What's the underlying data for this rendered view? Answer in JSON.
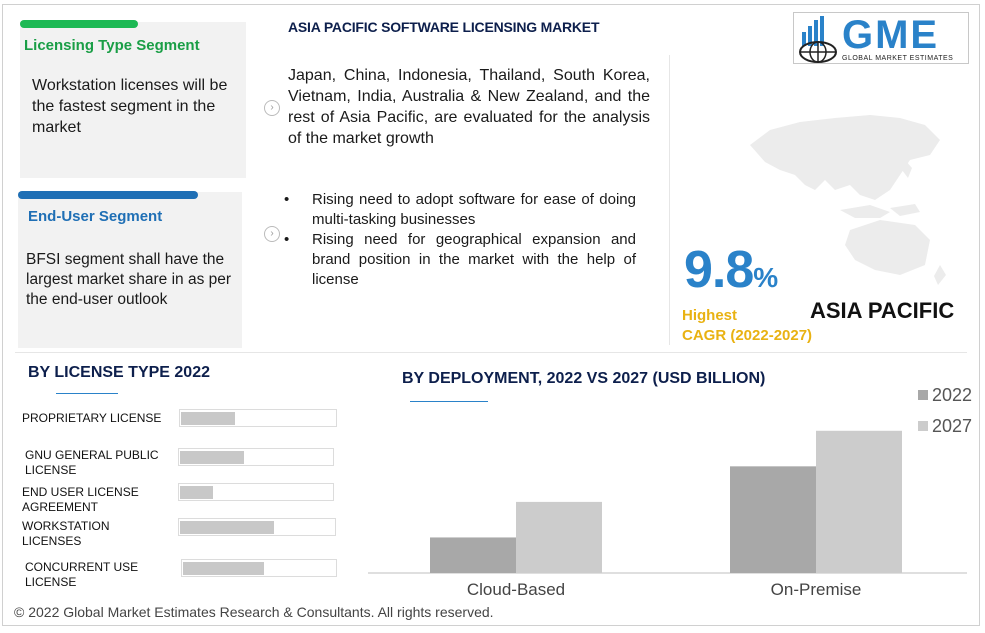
{
  "segments": {
    "licensing": {
      "title": "Licensing Type Segment",
      "text": "Workstation licenses will be the fastest segment in the market",
      "color": "#1db954"
    },
    "end_user": {
      "title": "End-User Segment",
      "text": "BFSI segment shall have the largest market share in as per the end-user outlook",
      "color": "#1f6fb5"
    }
  },
  "main": {
    "title": "ASIA PACIFIC SOFTWARE LICENSING MARKET",
    "paragraph": "Japan, China, Indonesia, Thailand, South Korea, Vietnam, India, Australia & New Zealand, and the rest of Asia Pacific, are evaluated for the analysis of the market growth",
    "bullets": [
      "Rising need to adopt software for ease of doing multi-tasking businesses",
      "Rising need for geographical expansion and brand position in the market with the help of license"
    ],
    "arrow_icon": "chevron-right-circle-icon"
  },
  "logo": {
    "text": "GME",
    "subtext": "GLOBAL MARKET ESTIMATES"
  },
  "cagr": {
    "value": "9.8",
    "unit": "%",
    "label1": "Highest",
    "label2": "CAGR (2022-2027)",
    "region": "ASIA PACIFIC"
  },
  "license_type": {
    "title": "BY LICENSE TYPE 2022",
    "items": [
      {
        "label": "PROPRIETARY LICENSE",
        "share": 0.35
      },
      {
        "label": "GNU GENERAL PUBLIC LICENSE",
        "share": 0.42
      },
      {
        "label": "END USER LICENSE AGREEMENT",
        "share": 0.22
      },
      {
        "label": "WORKSTATION LICENSES",
        "share": 0.61
      },
      {
        "label": "CONCURRENT USE LICENSE",
        "share": 0.53
      }
    ]
  },
  "chart_data": {
    "type": "bar",
    "title": "BY DEPLOYMENT, 2022 VS 2027 (USD BILLION)",
    "categories": [
      "Cloud-Based",
      "On-Premise"
    ],
    "series": [
      {
        "name": "2022",
        "values": [
          1.0,
          3.0
        ],
        "color": "#a8a8a8"
      },
      {
        "name": "2027",
        "values": [
          2.0,
          4.0
        ],
        "color": "#cccccc"
      }
    ],
    "ylim": [
      0,
      4.5
    ],
    "legend": "top-right"
  },
  "footer": "© 2022 Global Market Estimates Research & Consultants. All rights reserved."
}
